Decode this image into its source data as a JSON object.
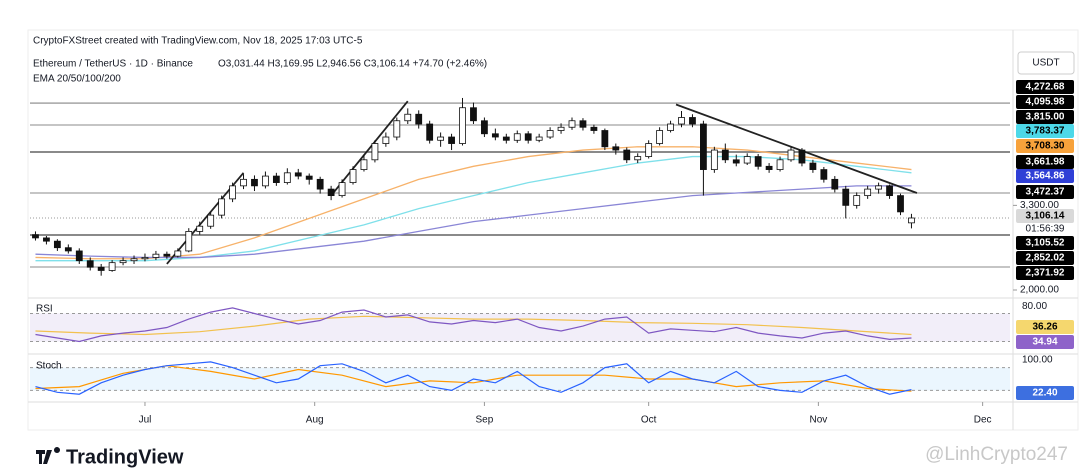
{
  "header": {
    "credit": "CryptoFXStreet created with TradingView.com, Nov 18, 2025 17:03 UTC-5",
    "symbol": "Ethereum / TetherUS · 1D · Binance",
    "ohlc": "O3,031.44 H3,169.95 L2,946.56 C3,106.14 +74.70 (+2.46%)",
    "indicator": "EMA 20/50/100/200",
    "currency": "USDT",
    "countdown": "01:56:39"
  },
  "footer": {
    "brand": "TradingView",
    "watermark": "@LinhCrypto247"
  },
  "price_tags": [
    {
      "label": "4,272.68",
      "color": "#000000"
    },
    {
      "label": "4,095.98",
      "color": "#000000"
    },
    {
      "label": "3,815.00",
      "color": "#000000"
    },
    {
      "label": "3,783.37",
      "color": "#4dd8e8"
    },
    {
      "label": "3,708.30",
      "color": "#f7a23b"
    },
    {
      "label": "3,661.98",
      "color": "#000000"
    },
    {
      "label": "3,564.86",
      "color": "#2f3fd6"
    },
    {
      "label": "3,472.37",
      "color": "#000000"
    },
    {
      "label": "3,106.14",
      "color": "#d9d9d9"
    },
    {
      "label": "3,105.52",
      "color": "#000000"
    },
    {
      "label": "2,852.02",
      "color": "#000000"
    },
    {
      "label": "2,371.92",
      "color": "#000000"
    }
  ],
  "chart_data": {
    "type": "candlestick",
    "x": [
      0,
      2,
      4,
      6,
      8,
      10,
      12,
      14,
      16,
      18,
      20,
      22,
      24,
      26,
      28,
      30,
      32,
      34,
      36,
      38,
      40,
      42,
      44,
      46,
      48,
      50,
      52,
      54,
      56,
      58,
      60,
      62,
      64,
      66,
      68,
      70,
      72,
      74,
      76,
      78,
      80,
      82,
      84,
      86,
      88,
      90,
      92,
      94,
      96,
      98,
      100,
      102,
      104,
      106,
      108,
      110,
      112,
      114,
      116,
      118,
      120,
      122,
      124,
      126,
      128,
      130,
      132,
      134,
      136,
      138,
      140,
      142,
      144,
      146,
      148,
      150,
      152,
      154,
      156,
      158,
      160
    ],
    "candles": [
      [
        2850,
        2900,
        2760,
        2800
      ],
      [
        2800,
        2830,
        2700,
        2750
      ],
      [
        2750,
        2780,
        2600,
        2650
      ],
      [
        2650,
        2700,
        2560,
        2600
      ],
      [
        2600,
        2640,
        2400,
        2450
      ],
      [
        2450,
        2500,
        2300,
        2350
      ],
      [
        2350,
        2400,
        2220,
        2300
      ],
      [
        2300,
        2460,
        2280,
        2420
      ],
      [
        2420,
        2500,
        2380,
        2450
      ],
      [
        2450,
        2530,
        2400,
        2480
      ],
      [
        2480,
        2560,
        2440,
        2500
      ],
      [
        2500,
        2600,
        2460,
        2550
      ],
      [
        2550,
        2590,
        2480,
        2520
      ],
      [
        2520,
        2640,
        2500,
        2600
      ],
      [
        2600,
        2950,
        2580,
        2900
      ],
      [
        2900,
        3050,
        2850,
        2980
      ],
      [
        2980,
        3200,
        2940,
        3150
      ],
      [
        3150,
        3450,
        3100,
        3400
      ],
      [
        3400,
        3650,
        3350,
        3600
      ],
      [
        3600,
        3780,
        3550,
        3700
      ],
      [
        3700,
        3760,
        3520,
        3600
      ],
      [
        3600,
        3820,
        3560,
        3750
      ],
      [
        3750,
        3800,
        3600,
        3650
      ],
      [
        3650,
        3870,
        3620,
        3800
      ],
      [
        3800,
        3860,
        3700,
        3750
      ],
      [
        3750,
        3790,
        3620,
        3700
      ],
      [
        3700,
        3740,
        3480,
        3550
      ],
      [
        3550,
        3600,
        3380,
        3450
      ],
      [
        3450,
        3700,
        3420,
        3650
      ],
      [
        3650,
        3900,
        3620,
        3850
      ],
      [
        3850,
        4080,
        3820,
        4000
      ],
      [
        4000,
        4300,
        3960,
        4250
      ],
      [
        4250,
        4420,
        4200,
        4350
      ],
      [
        4350,
        4650,
        4300,
        4600
      ],
      [
        4600,
        4790,
        4550,
        4700
      ],
      [
        4700,
        4760,
        4480,
        4550
      ],
      [
        4550,
        4600,
        4250,
        4300
      ],
      [
        4300,
        4420,
        4200,
        4350
      ],
      [
        4350,
        4400,
        4150,
        4250
      ],
      [
        4250,
        4950,
        4220,
        4800
      ],
      [
        4800,
        4880,
        4550,
        4600
      ],
      [
        4600,
        4650,
        4350,
        4400
      ],
      [
        4400,
        4480,
        4300,
        4350
      ],
      [
        4350,
        4400,
        4250,
        4300
      ],
      [
        4300,
        4450,
        4260,
        4400
      ],
      [
        4400,
        4440,
        4250,
        4300
      ],
      [
        4300,
        4400,
        4270,
        4350
      ],
      [
        4350,
        4500,
        4320,
        4450
      ],
      [
        4450,
        4560,
        4400,
        4500
      ],
      [
        4500,
        4650,
        4460,
        4600
      ],
      [
        4600,
        4640,
        4450,
        4500
      ],
      [
        4500,
        4540,
        4400,
        4450
      ],
      [
        4450,
        4480,
        4150,
        4200
      ],
      [
        4200,
        4250,
        4080,
        4150
      ],
      [
        4150,
        4190,
        3950,
        4000
      ],
      [
        4000,
        4100,
        3950,
        4050
      ],
      [
        4050,
        4300,
        4020,
        4250
      ],
      [
        4250,
        4500,
        4220,
        4450
      ],
      [
        4450,
        4600,
        4420,
        4550
      ],
      [
        4550,
        4750,
        4500,
        4650
      ],
      [
        4650,
        4700,
        4500,
        4550
      ],
      [
        4550,
        4600,
        3450,
        3850
      ],
      [
        3850,
        4200,
        3800,
        4150
      ],
      [
        4150,
        4250,
        3950,
        4000
      ],
      [
        4000,
        4080,
        3900,
        3950
      ],
      [
        3950,
        4100,
        3920,
        4050
      ],
      [
        4050,
        4090,
        3850,
        3900
      ],
      [
        3900,
        3950,
        3800,
        3850
      ],
      [
        3850,
        4050,
        3820,
        4000
      ],
      [
        4000,
        4200,
        3970,
        4150
      ],
      [
        4150,
        4180,
        3900,
        3950
      ],
      [
        3950,
        4000,
        3800,
        3850
      ],
      [
        3850,
        3890,
        3650,
        3700
      ],
      [
        3700,
        3750,
        3500,
        3550
      ],
      [
        3550,
        3600,
        3100,
        3300
      ],
      [
        3300,
        3500,
        3250,
        3450
      ],
      [
        3450,
        3600,
        3400,
        3550
      ],
      [
        3550,
        3650,
        3480,
        3600
      ],
      [
        3600,
        3620,
        3400,
        3450
      ],
      [
        3450,
        3480,
        3150,
        3200
      ],
      [
        3031.44,
        3169.95,
        2946.56,
        3106.14
      ]
    ],
    "ema": [
      {
        "color": "#f7b26a",
        "x": [
          0,
          10,
          20,
          30,
          40,
          50,
          60,
          70,
          80,
          90,
          100,
          110,
          120,
          130,
          140,
          150,
          160
        ],
        "values": [
          2500,
          2480,
          2480,
          2550,
          2800,
          3100,
          3400,
          3700,
          3900,
          4050,
          4150,
          4200,
          4200,
          4150,
          4050,
          3950,
          3850
        ]
      },
      {
        "color": "#7fe0ea",
        "x": [
          0,
          10,
          20,
          30,
          40,
          50,
          60,
          70,
          80,
          90,
          100,
          110,
          120,
          130,
          140,
          150,
          160
        ],
        "values": [
          2450,
          2450,
          2450,
          2500,
          2600,
          2800,
          3000,
          3250,
          3450,
          3650,
          3800,
          3950,
          4050,
          4050,
          4000,
          3900,
          3800
        ]
      },
      {
        "color": "#8a86d6",
        "x": [
          0,
          10,
          20,
          30,
          40,
          50,
          60,
          70,
          80,
          90,
          100,
          110,
          120,
          130,
          140,
          150,
          160
        ],
        "values": [
          2550,
          2520,
          2500,
          2500,
          2550,
          2650,
          2750,
          2900,
          3050,
          3150,
          3250,
          3350,
          3450,
          3500,
          3550,
          3600,
          3600
        ]
      }
    ],
    "trendlines": [
      {
        "x": [
          24,
          38
        ],
        "y": [
          2400,
          3800
        ]
      },
      {
        "x": [
          54,
          68
        ],
        "y": [
          3450,
          4900
        ]
      },
      {
        "x": [
          117,
          161
        ],
        "y": [
          4850,
          3490
        ]
      }
    ],
    "levels": [
      4872,
      4535,
      4120,
      3490,
      2845,
      2353
    ],
    "current": 3106.14,
    "xlim": [
      -1,
      178
    ],
    "ylim": [
      2000,
      5226
    ],
    "xticks": [
      {
        "value": 20,
        "label": "Jul"
      },
      {
        "value": 51,
        "label": "Aug"
      },
      {
        "value": 82,
        "label": "Sep"
      },
      {
        "value": 112,
        "label": "Oct"
      },
      {
        "value": 143,
        "label": "Nov"
      },
      {
        "value": 173,
        "label": "Dec"
      }
    ],
    "yticks": [
      {
        "value": 3300,
        "label": "3,300.00"
      },
      {
        "value": 2000,
        "label": "2,000.00"
      }
    ],
    "rsi": {
      "title": "RSI",
      "ylim": [
        15,
        85
      ],
      "yticks": [
        {
          "value": 80,
          "label": "80.00"
        }
      ],
      "bands": [
        70,
        30
      ],
      "tags": [
        {
          "label": "36.26",
          "color": "#f5d76e"
        },
        {
          "label": "34.94",
          "color": "#8e63c9"
        }
      ],
      "x": [
        0,
        4,
        8,
        12,
        16,
        20,
        24,
        28,
        32,
        36,
        40,
        44,
        48,
        52,
        56,
        60,
        64,
        68,
        72,
        76,
        80,
        84,
        88,
        92,
        96,
        100,
        104,
        108,
        112,
        116,
        120,
        124,
        128,
        132,
        136,
        140,
        144,
        148,
        152,
        156,
        160
      ],
      "values": [
        40,
        35,
        30,
        38,
        42,
        45,
        50,
        62,
        72,
        78,
        70,
        62,
        55,
        60,
        72,
        75,
        65,
        68,
        58,
        55,
        60,
        57,
        62,
        50,
        45,
        52,
        62,
        65,
        42,
        48,
        46,
        44,
        50,
        42,
        38,
        35,
        42,
        45,
        38,
        33,
        35
      ],
      "ma_x": [
        0,
        10,
        20,
        30,
        40,
        50,
        60,
        70,
        80,
        90,
        100,
        110,
        120,
        130,
        140,
        150,
        160
      ],
      "ma": [
        45,
        42,
        40,
        44,
        52,
        62,
        66,
        64,
        62,
        62,
        60,
        57,
        56,
        54,
        50,
        45,
        40
      ]
    },
    "stoch": {
      "title": "Stoch",
      "ylim": [
        0,
        100
      ],
      "yticks": [
        {
          "value": 100,
          "label": "100.00"
        }
      ],
      "bands": [
        80,
        20
      ],
      "tags": [
        {
          "label": "22.40",
          "color": "#3d6fe0"
        }
      ],
      "x": [
        0,
        4,
        8,
        12,
        16,
        20,
        24,
        28,
        32,
        36,
        40,
        44,
        48,
        52,
        56,
        60,
        64,
        68,
        72,
        76,
        80,
        84,
        88,
        92,
        96,
        100,
        104,
        108,
        112,
        116,
        120,
        124,
        128,
        132,
        136,
        140,
        144,
        148,
        152,
        156,
        160
      ],
      "k": [
        30,
        15,
        10,
        40,
        60,
        75,
        85,
        90,
        95,
        80,
        60,
        40,
        50,
        85,
        90,
        70,
        40,
        60,
        30,
        20,
        50,
        40,
        70,
        30,
        15,
        40,
        80,
        90,
        40,
        70,
        50,
        40,
        70,
        30,
        20,
        15,
        45,
        60,
        30,
        10,
        22
      ],
      "d_x": [
        0,
        8,
        16,
        24,
        32,
        40,
        48,
        56,
        64,
        72,
        80,
        88,
        96,
        104,
        112,
        120,
        128,
        136,
        144,
        152,
        160
      ],
      "d": [
        25,
        30,
        65,
        85,
        70,
        50,
        75,
        60,
        30,
        45,
        40,
        60,
        60,
        60,
        50,
        50,
        30,
        40,
        45,
        25,
        18
      ]
    }
  }
}
